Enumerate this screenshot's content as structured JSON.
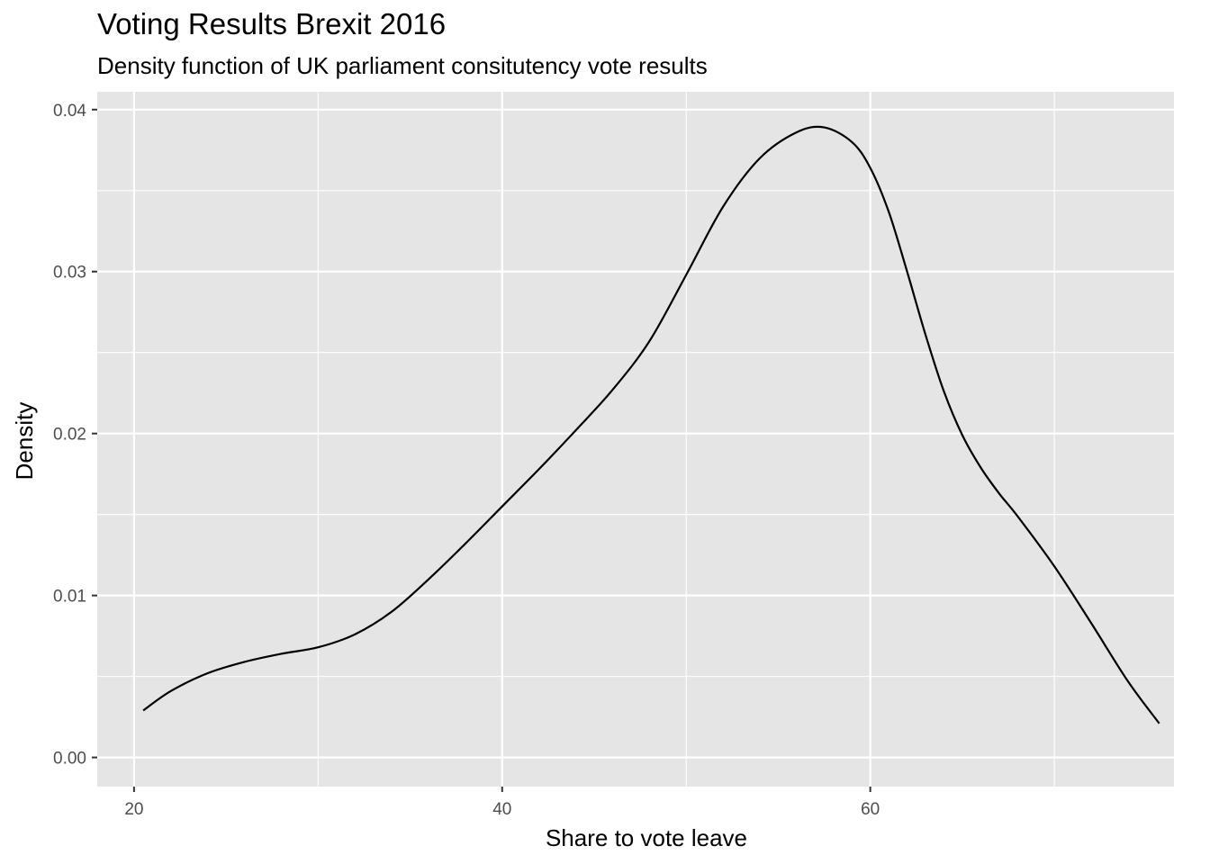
{
  "chart_data": {
    "type": "line",
    "title": "Voting Results Brexit 2016",
    "subtitle": "Density function of UK parliament consitutency vote results",
    "xlabel": "Share to vote leave",
    "ylabel": "Density",
    "xlim": [
      18,
      76.5
    ],
    "ylim": [
      -0.0018,
      0.0411
    ],
    "x_ticks": [
      20,
      40,
      60
    ],
    "x_tick_labels": [
      "20",
      "40",
      "60"
    ],
    "x_minor_ticks": [
      30,
      50,
      70
    ],
    "y_ticks": [
      0.0,
      0.01,
      0.02,
      0.03,
      0.04
    ],
    "y_tick_labels": [
      "0.00",
      "0.01",
      "0.02",
      "0.03",
      "0.04"
    ],
    "y_minor_ticks": [
      0.005,
      0.015,
      0.025,
      0.035
    ],
    "grid": true,
    "panel_background": "#e5e5e5",
    "grid_color": "#ffffff",
    "line_color": "#000000",
    "series": [
      {
        "x": [
          20.5,
          22,
          24,
          26,
          28,
          30,
          32,
          34,
          36,
          38,
          40,
          42,
          44,
          46,
          48,
          50,
          52,
          54,
          56,
          57.5,
          59,
          60,
          61,
          62,
          63,
          64,
          65,
          66,
          67,
          68,
          70,
          72,
          74,
          75.7
        ],
        "y": [
          0.0029,
          0.0041,
          0.0052,
          0.0059,
          0.0064,
          0.0068,
          0.0076,
          0.009,
          0.011,
          0.0132,
          0.0155,
          0.0178,
          0.0202,
          0.0227,
          0.0257,
          0.0298,
          0.034,
          0.037,
          0.0386,
          0.0389,
          0.038,
          0.0364,
          0.0337,
          0.03,
          0.0261,
          0.0226,
          0.0199,
          0.0179,
          0.0163,
          0.0149,
          0.0118,
          0.0083,
          0.0047,
          0.0021
        ]
      }
    ]
  }
}
